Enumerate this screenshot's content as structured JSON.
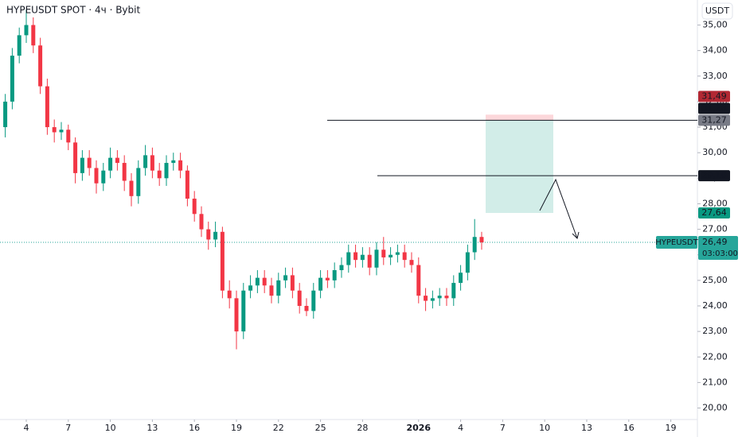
{
  "chart_data": {
    "type": "candlestick",
    "title": "HYPEUSDT SPOT · 4ч · Bybit",
    "currency_button": "USDT",
    "up_color": "#089981",
    "down_color": "#f23645",
    "xlim": [
      -1.875,
      47.9
    ],
    "xticks": [
      {
        "value": 0,
        "label": "4"
      },
      {
        "value": 3,
        "label": "7"
      },
      {
        "value": 6,
        "label": "10"
      },
      {
        "value": 9,
        "label": "13"
      },
      {
        "value": 12,
        "label": "16"
      },
      {
        "value": 15,
        "label": "19"
      },
      {
        "value": 18,
        "label": "22"
      },
      {
        "value": 21,
        "label": "25"
      },
      {
        "value": 24,
        "label": "28"
      },
      {
        "value": 28,
        "label": "2026"
      },
      {
        "value": 31,
        "label": "4"
      },
      {
        "value": 34,
        "label": "7"
      },
      {
        "value": 37,
        "label": "10"
      },
      {
        "value": 40,
        "label": "13"
      },
      {
        "value": 43,
        "label": "16"
      },
      {
        "value": 46,
        "label": "19"
      }
    ],
    "ylim": [
      19.55,
      35.98
    ],
    "yticks": [
      {
        "value": 20,
        "label": "20,00"
      },
      {
        "value": 21,
        "label": "21,00"
      },
      {
        "value": 22,
        "label": "22,00"
      },
      {
        "value": 23,
        "label": "23,00"
      },
      {
        "value": 24,
        "label": "24,00"
      },
      {
        "value": 25,
        "label": "25,00"
      },
      {
        "value": 26,
        "label": "26,00"
      },
      {
        "value": 27,
        "label": "27,00"
      },
      {
        "value": 28,
        "label": "28,00"
      },
      {
        "value": 29,
        "label": "29,00"
      },
      {
        "value": 30,
        "label": "30,00"
      },
      {
        "value": 31,
        "label": "31,00"
      },
      {
        "value": 32,
        "label": "32,00"
      },
      {
        "value": 33,
        "label": "33,00"
      },
      {
        "value": 34,
        "label": "34,00"
      },
      {
        "value": 35,
        "label": "35,00"
      }
    ],
    "candles": {
      "x": [
        -1.5,
        -1,
        -0.5,
        0,
        0.5,
        1,
        1.5,
        2,
        2.5,
        3,
        3.5,
        4,
        4.5,
        5,
        5.5,
        6,
        6.5,
        7,
        7.5,
        8,
        8.5,
        9,
        9.5,
        10,
        10.5,
        11,
        11.5,
        12,
        12.5,
        13,
        13.5,
        14,
        14.5,
        15,
        15.5,
        16,
        16.5,
        17,
        17.5,
        18,
        18.5,
        19,
        19.5,
        20,
        20.5,
        21,
        21.5,
        22,
        22.5,
        23,
        23.5,
        24,
        24.5,
        25,
        25.5,
        26,
        26.5,
        27,
        27.5,
        28,
        28.5,
        29,
        29.5,
        30,
        30.5,
        31,
        31.5,
        32,
        32.5
      ],
      "open": [
        31.0,
        32.0,
        33.8,
        34.6,
        35.0,
        34.2,
        32.6,
        31.0,
        30.8,
        30.9,
        30.4,
        29.2,
        29.8,
        29.4,
        28.8,
        29.3,
        29.8,
        29.6,
        28.9,
        28.3,
        29.4,
        29.9,
        29.3,
        29.0,
        29.6,
        29.7,
        29.3,
        28.2,
        27.6,
        27.0,
        26.6,
        26.9,
        24.6,
        24.3,
        23.0,
        24.6,
        24.8,
        25.1,
        24.8,
        24.4,
        25.0,
        25.2,
        24.6,
        24.0,
        23.8,
        24.6,
        25.1,
        25.0,
        25.4,
        25.6,
        26.1,
        25.8,
        26.0,
        25.5,
        26.2,
        25.9,
        26.0,
        26.1,
        25.8,
        25.6,
        24.4,
        24.2,
        24.3,
        24.4,
        24.3,
        24.9,
        25.3,
        26.1,
        26.7
      ],
      "high": [
        32.3,
        34.1,
        34.9,
        35.6,
        35.3,
        34.5,
        32.9,
        31.3,
        31.2,
        31.1,
        30.6,
        30.1,
        30.1,
        29.7,
        29.6,
        30.2,
        30.1,
        29.9,
        29.2,
        29.7,
        30.3,
        30.2,
        29.6,
        29.9,
        30.0,
        30.0,
        29.5,
        28.5,
        27.9,
        27.3,
        27.3,
        27.1,
        25.0,
        24.6,
        24.9,
        25.2,
        25.4,
        25.4,
        25.1,
        25.3,
        25.5,
        25.5,
        24.9,
        24.3,
        24.9,
        25.4,
        25.4,
        25.7,
        25.9,
        26.4,
        26.4,
        26.3,
        26.3,
        26.5,
        26.7,
        26.3,
        26.4,
        26.4,
        26.1,
        25.9,
        24.7,
        24.6,
        24.7,
        24.7,
        25.2,
        25.6,
        26.4,
        27.4,
        26.9
      ],
      "low": [
        30.6,
        31.7,
        33.5,
        34.3,
        33.9,
        32.3,
        30.7,
        30.4,
        30.5,
        30.1,
        28.8,
        28.9,
        29.1,
        28.4,
        28.5,
        29.0,
        29.3,
        28.5,
        27.9,
        28.0,
        29.1,
        29.0,
        28.7,
        28.7,
        29.3,
        29.0,
        27.9,
        27.3,
        26.7,
        26.2,
        26.3,
        24.3,
        23.9,
        22.3,
        22.7,
        24.3,
        24.5,
        24.5,
        24.1,
        24.1,
        24.7,
        24.3,
        23.7,
        23.6,
        23.5,
        24.3,
        24.7,
        24.7,
        25.1,
        25.3,
        25.5,
        25.5,
        25.2,
        25.2,
        25.6,
        25.6,
        25.7,
        25.5,
        25.3,
        24.1,
        23.8,
        23.9,
        24.0,
        24.0,
        24.0,
        24.6,
        25.0,
        25.8,
        26.2
      ],
      "close": [
        32.0,
        33.8,
        34.6,
        35.0,
        34.2,
        32.6,
        31.0,
        30.8,
        30.9,
        30.4,
        29.2,
        29.8,
        29.4,
        28.8,
        29.3,
        29.8,
        29.6,
        28.9,
        28.3,
        29.4,
        29.9,
        29.3,
        29.0,
        29.6,
        29.7,
        29.3,
        28.2,
        27.6,
        27.0,
        26.6,
        26.9,
        24.6,
        24.3,
        23.0,
        24.6,
        24.8,
        25.1,
        24.8,
        24.4,
        25.0,
        25.2,
        24.6,
        24.0,
        23.8,
        24.6,
        25.1,
        25.0,
        25.4,
        25.6,
        26.1,
        25.8,
        26.0,
        25.5,
        26.2,
        25.9,
        26.0,
        26.1,
        25.8,
        25.6,
        24.4,
        24.2,
        24.3,
        24.4,
        24.3,
        24.9,
        25.3,
        26.1,
        26.7,
        26.49
      ]
    },
    "price_tags": [
      {
        "value": 27.64,
        "label": "27,64",
        "color": "#089981"
      },
      {
        "value": 29.1,
        "label": "29,10",
        "color": "#131722"
      },
      {
        "value": 31.27,
        "label": "31,27",
        "color": "#787b86"
      },
      {
        "value": 31.28,
        "label": "31,28",
        "color": "#131722"
      },
      {
        "value": 31.49,
        "label": "31,49",
        "color": "#b22833"
      }
    ],
    "last_price": {
      "symbol": "HYPEUSDT",
      "value": 26.49,
      "label": "26,49",
      "countdown": "03:03:00",
      "color": "#26a69a"
    }
  }
}
